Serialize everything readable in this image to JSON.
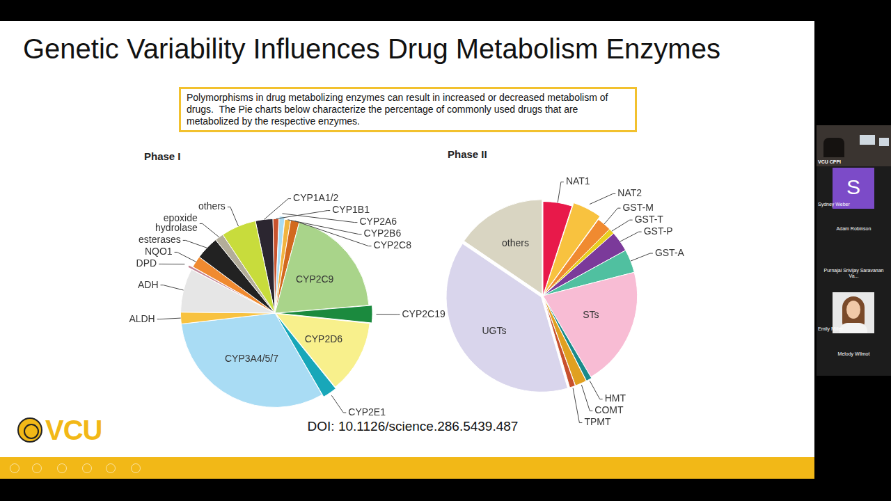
{
  "slide": {
    "title": "Genetic Variability Influences Drug Metabolism Enzymes",
    "caption": "Polymorphisms in drug metabolizing enzymes can result in increased or decreased metabolism of drugs.  The Pie charts below characterize the percentage of commonly used drugs that are metabolized by the respective enzymes.",
    "doi": "DOI: 10.1126/science.286.5439.487",
    "logo": "VCU"
  },
  "chart_data": [
    {
      "type": "pie",
      "title": "Phase I",
      "categories": [
        "CYP1A1/2",
        "CYP1B1",
        "CYP2A6",
        "CYP2B6",
        "CYP2C8",
        "CYP2C9",
        "CYP2C19",
        "CYP2D6",
        "CYP2E1",
        "CYP3A4/5/7",
        "ALDH",
        "ADH",
        "DPD",
        "NQO1",
        "esterases",
        "epoxide hydrolase",
        "others"
      ],
      "values": [
        3,
        1,
        1,
        1,
        1.5,
        19.5,
        3,
        12.5,
        2.5,
        31.5,
        2,
        7.5,
        0.5,
        2,
        4,
        1.5,
        6
      ],
      "colors": [
        "#2b2630",
        "#c9532e",
        "#a9dbf2",
        "#f2b440",
        "#d2691e",
        "#a9d48a",
        "#1b8a3e",
        "#f8f08c",
        "#18a7b9",
        "#a9dcf4",
        "#f8c23f",
        "#e6e6e6",
        "#c48595",
        "#f08a30",
        "#222222",
        "#b3ad9a",
        "#c8dc3c"
      ]
    },
    {
      "type": "pie",
      "title": "Phase II",
      "categories": [
        "NAT1",
        "NAT2",
        "GST-M",
        "GST-T",
        "GST-P",
        "GST-A",
        "STs",
        "HMT",
        "COMT",
        "TPMT",
        "UGTs",
        "others"
      ],
      "values": [
        5,
        5,
        2.5,
        1,
        3.5,
        4,
        20.5,
        1,
        2,
        1,
        39,
        15.5
      ],
      "colors": [
        "#e8194a",
        "#f8c23f",
        "#f08a30",
        "#e8d020",
        "#7b3a9a",
        "#50c0a0",
        "#f8bcd4",
        "#1a8a8a",
        "#e0a020",
        "#c8502c",
        "#d9d5ec",
        "#d9d5c2"
      ]
    }
  ],
  "participants": [
    {
      "name": "VCU CPPI"
    },
    {
      "name": "Sydney Weber",
      "avatar": "S"
    },
    {
      "name": "Adam Robinson"
    },
    {
      "name": "Purnajai Srivijay Saravanan Va..."
    },
    {
      "name": "Emily Miller"
    },
    {
      "name": "Melody Wilmot"
    }
  ]
}
